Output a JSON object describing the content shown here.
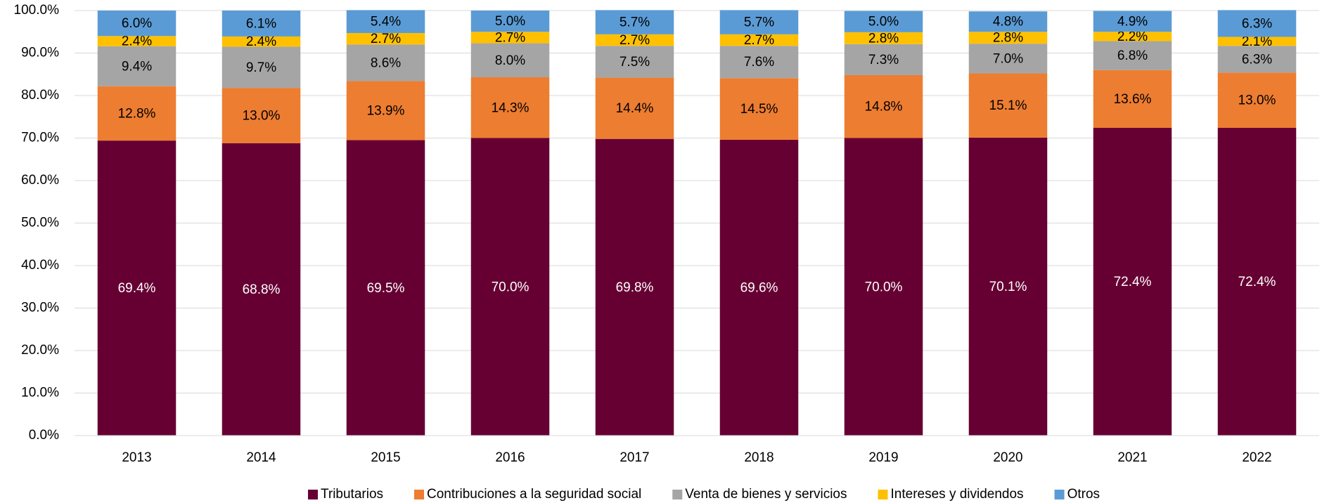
{
  "chart_data": {
    "type": "stacked_bar",
    "categories": [
      "2013",
      "2014",
      "2015",
      "2016",
      "2017",
      "2018",
      "2019",
      "2020",
      "2021",
      "2022"
    ],
    "series": [
      {
        "name": "Tributarios",
        "color": "#660033",
        "values": [
          69.4,
          68.8,
          69.5,
          70.0,
          69.8,
          69.6,
          70.0,
          70.1,
          72.4,
          72.4
        ],
        "value_labels": [
          "69.4%",
          "68.8%",
          "69.5%",
          "70.0%",
          "69.8%",
          "69.6%",
          "70.0%",
          "70.1%",
          "72.4%",
          "72.4%"
        ]
      },
      {
        "name": "Contribuciones a la seguridad social",
        "color": "#ed7d31",
        "values": [
          12.8,
          13.0,
          13.9,
          14.3,
          14.4,
          14.5,
          14.8,
          15.1,
          13.6,
          13.0
        ],
        "value_labels": [
          "12.8%",
          "13.0%",
          "13.9%",
          "14.3%",
          "14.4%",
          "14.5%",
          "14.8%",
          "15.1%",
          "13.6%",
          "13.0%"
        ]
      },
      {
        "name": "Venta de bienes y servicios",
        "color": "#a5a5a5",
        "values": [
          9.4,
          9.7,
          8.6,
          8.0,
          7.5,
          7.6,
          7.3,
          7.0,
          6.8,
          6.3
        ],
        "value_labels": [
          "9.4%",
          "9.7%",
          "8.6%",
          "8.0%",
          "7.5%",
          "7.6%",
          "7.3%",
          "7.0%",
          "6.8%",
          "6.3%"
        ]
      },
      {
        "name": "Intereses y dividendos",
        "color": "#ffc000",
        "values": [
          2.4,
          2.4,
          2.7,
          2.7,
          2.7,
          2.7,
          2.8,
          2.8,
          2.2,
          2.1
        ],
        "value_labels": [
          "2.4%",
          "2.4%",
          "2.7%",
          "2.7%",
          "2.7%",
          "2.7%",
          "2.8%",
          "2.8%",
          "2.2%",
          "2.1%"
        ]
      },
      {
        "name": "Otros",
        "color": "#5b9bd5",
        "values": [
          6.0,
          6.1,
          5.4,
          5.0,
          5.7,
          5.7,
          5.0,
          4.8,
          4.9,
          6.3
        ],
        "value_labels": [
          "6.0%",
          "6.1%",
          "5.4%",
          "5.0%",
          "5.7%",
          "5.7%",
          "5.0%",
          "4.8%",
          "4.9%",
          "6.3%"
        ]
      }
    ],
    "ylim": [
      0,
      100
    ],
    "yticks": [
      {
        "value": 0,
        "label": "0.0%"
      },
      {
        "value": 10,
        "label": "10.0%"
      },
      {
        "value": 20,
        "label": "20.0%"
      },
      {
        "value": 30,
        "label": "30.0%"
      },
      {
        "value": 40,
        "label": "40.0%"
      },
      {
        "value": 50,
        "label": "50.0%"
      },
      {
        "value": 60,
        "label": "60.0%"
      },
      {
        "value": 70,
        "label": "70.0%"
      },
      {
        "value": 80,
        "label": "80.0%"
      },
      {
        "value": 90,
        "label": "90.0%"
      },
      {
        "value": 100,
        "label": "100.0%"
      }
    ],
    "grid": true,
    "legend": "bottom"
  }
}
